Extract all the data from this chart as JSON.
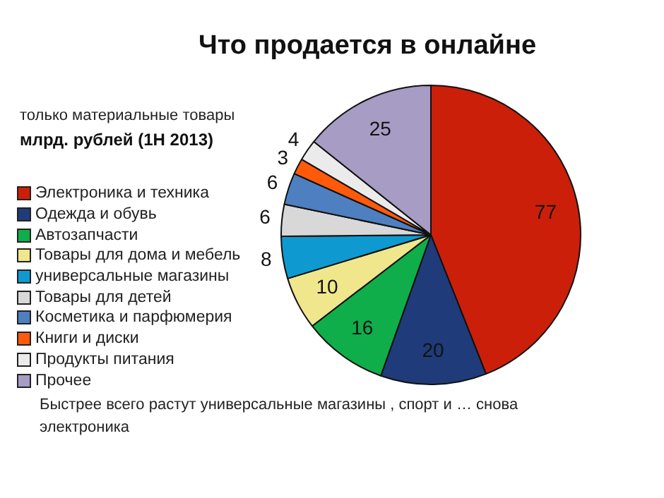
{
  "chart_data": {
    "type": "pie",
    "title": "Что продается в онлайне",
    "subtitle": "только материальные товары",
    "annotations": [
      "млрд. рублей (1H 2013)",
      "Быстрее всего растут универсальные магазины , спорт и … снова электроника"
    ],
    "categories": [
      "Электроника и техника",
      "Одежда и обувь",
      "Автозапчасти",
      "Товары для дома и мебель",
      "универсальные магазины",
      "Товары для детей",
      "Косметика и парфюмерия",
      "Книги и диски",
      "Продукты питания",
      "Прочее"
    ],
    "values": [
      77,
      20,
      16,
      10,
      8,
      6,
      6,
      3,
      4,
      25
    ],
    "colors": [
      "#cc1f0a",
      "#1f3b7a",
      "#0fae4a",
      "#f0e68c",
      "#0e9ad0",
      "#d8d8d8",
      "#4e7fc0",
      "#ff5a0a",
      "#ebebeb",
      "#a69cc4"
    ],
    "data_labels": true,
    "legend": "left"
  }
}
